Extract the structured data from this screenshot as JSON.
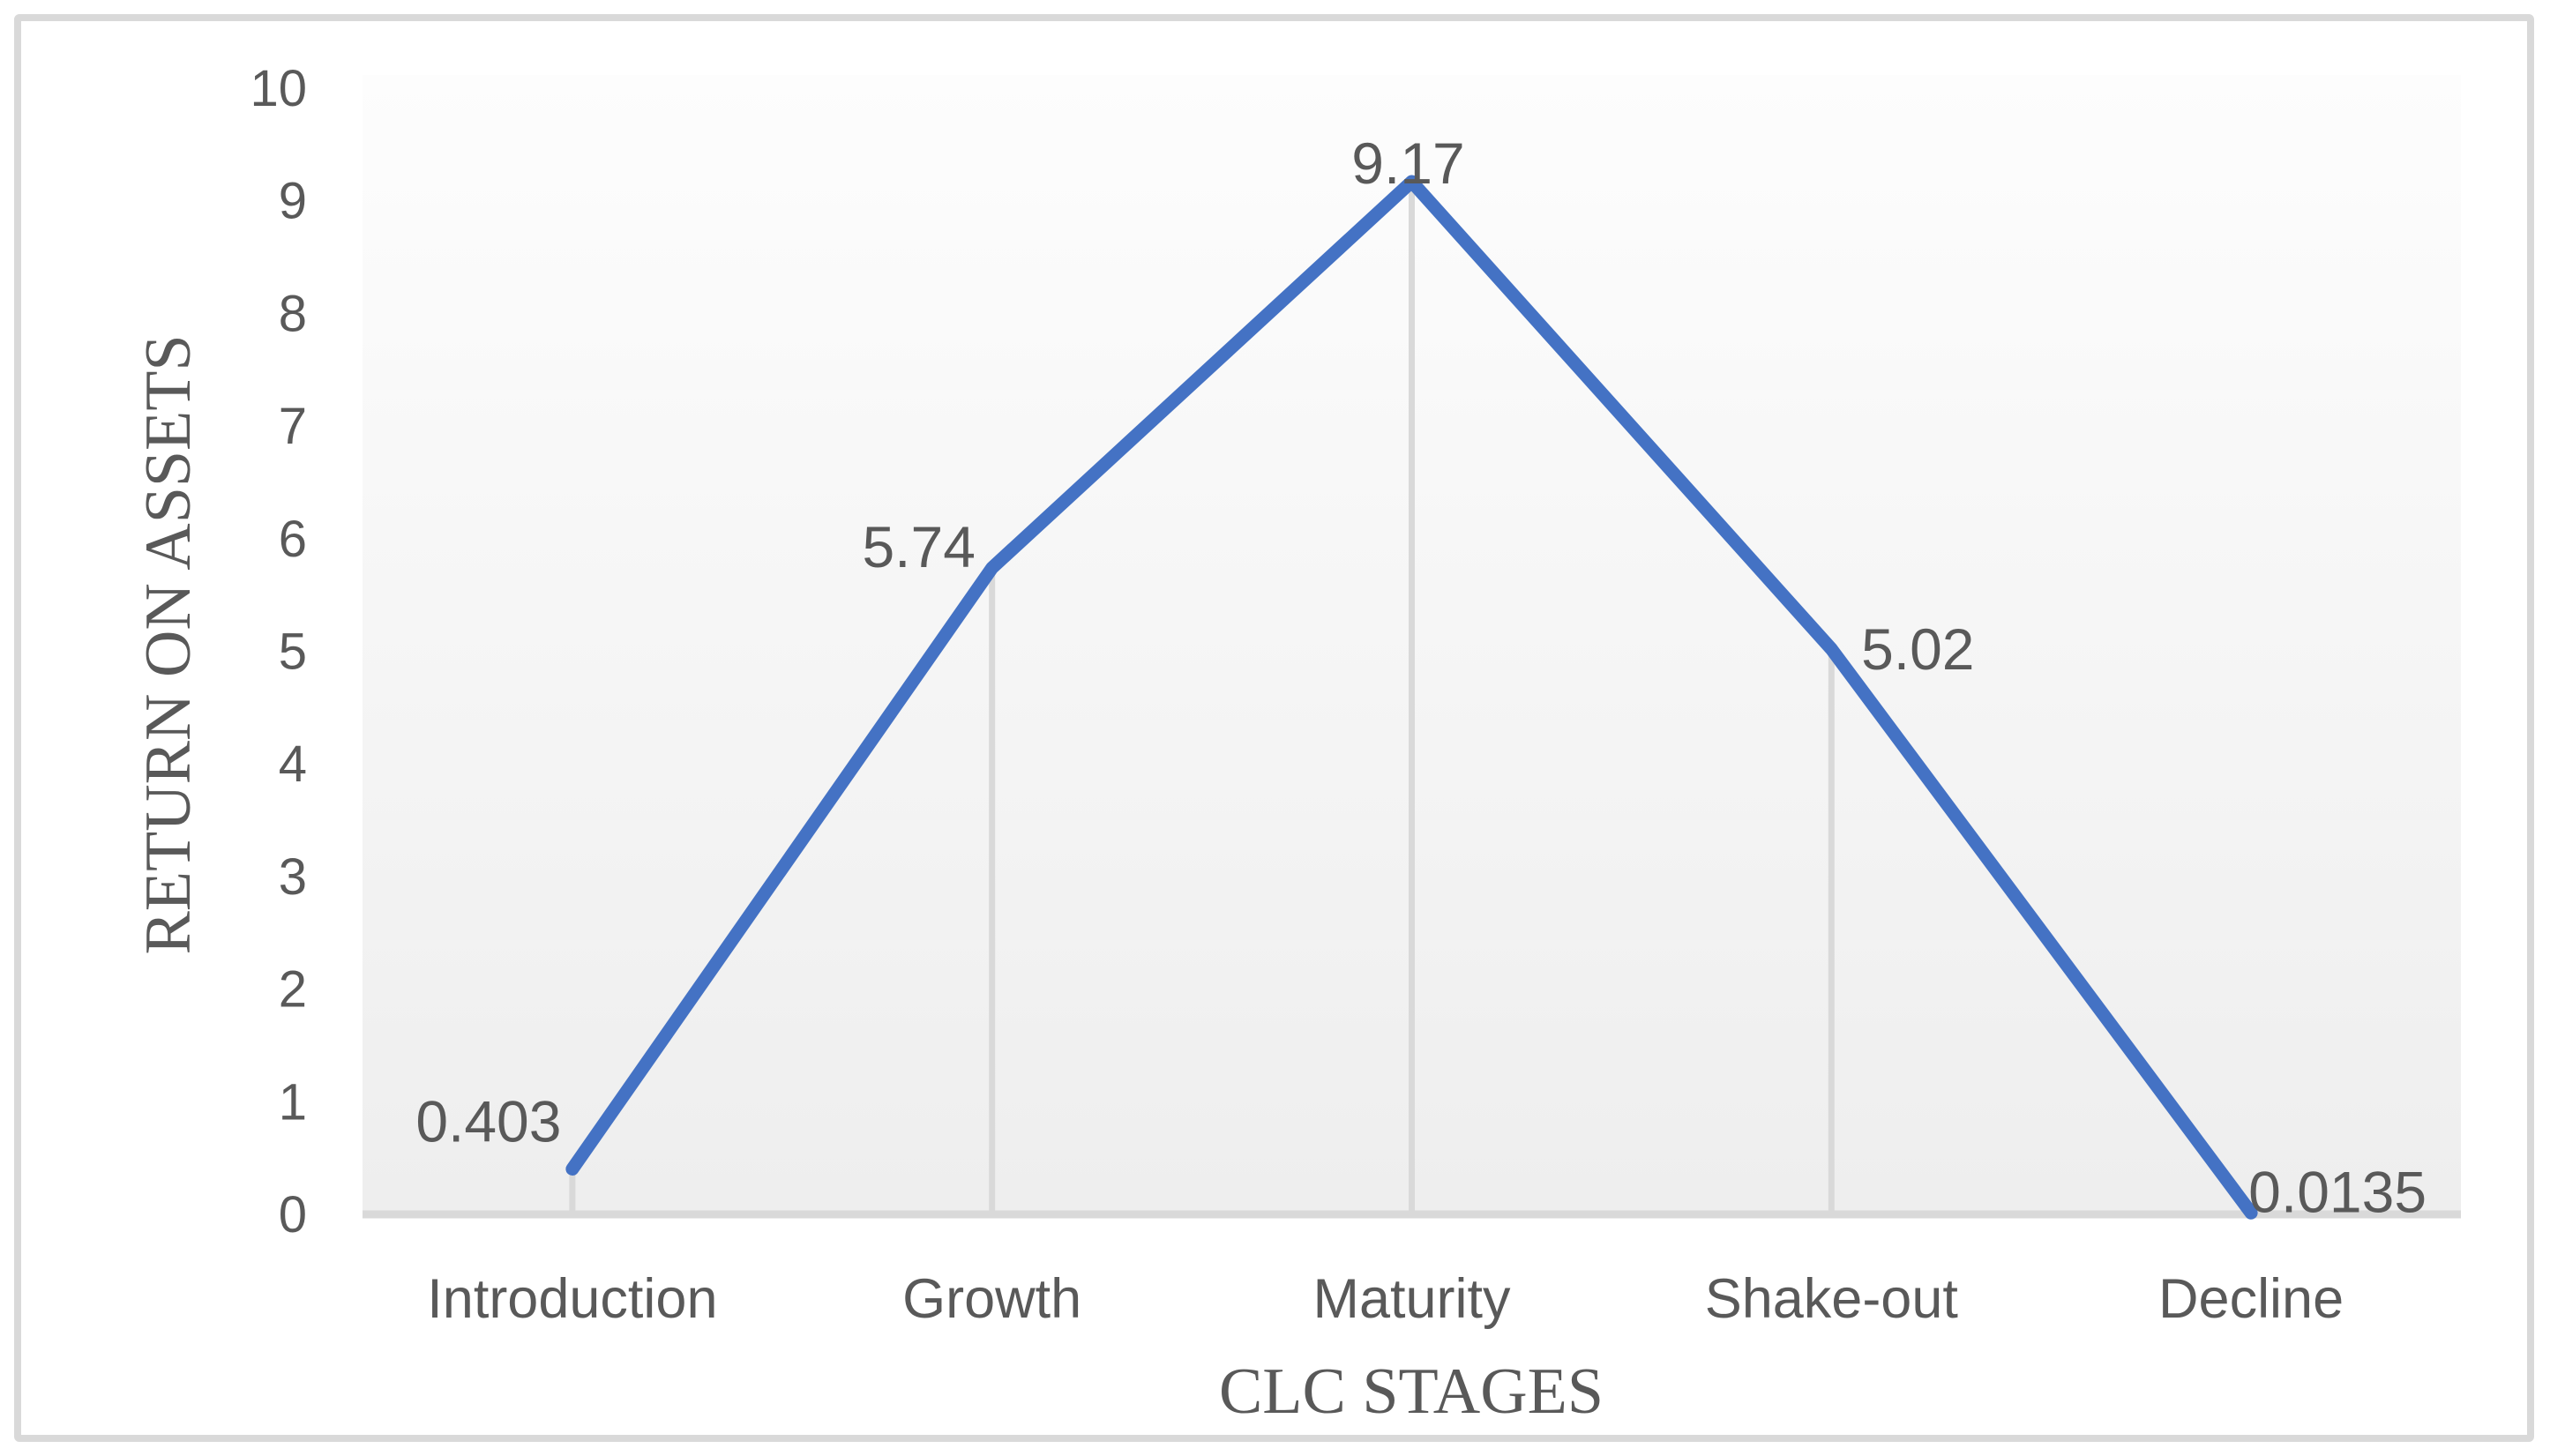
{
  "chart_data": {
    "type": "line",
    "title": "",
    "xlabel": "CLC STAGES",
    "ylabel": "RETURN ON ASSETS",
    "categories": [
      "Introduction",
      "Growth",
      "Maturity",
      "Shake-out",
      "Decline"
    ],
    "series": [
      {
        "name": "Return on Assets",
        "values": [
          0.403,
          5.74,
          9.17,
          5.02,
          0.0135
        ],
        "data_labels": [
          "0.403",
          "5.74",
          "9.17",
          "5.02",
          "0.0135"
        ]
      }
    ],
    "ylim": [
      0,
      10
    ],
    "y_ticks": [
      0,
      1,
      2,
      3,
      4,
      5,
      6,
      7,
      8,
      9,
      10
    ],
    "grid": "vertical drop lines from each point to x-axis",
    "legend_position": "none",
    "colors": {
      "line": "#4472C4",
      "text": "#595959",
      "axis": "#D9D9D9",
      "plot_fill_top": "#FDFDFD",
      "plot_fill_bottom": "#EEEEEE",
      "frame_border": "#D9D9D9"
    }
  }
}
